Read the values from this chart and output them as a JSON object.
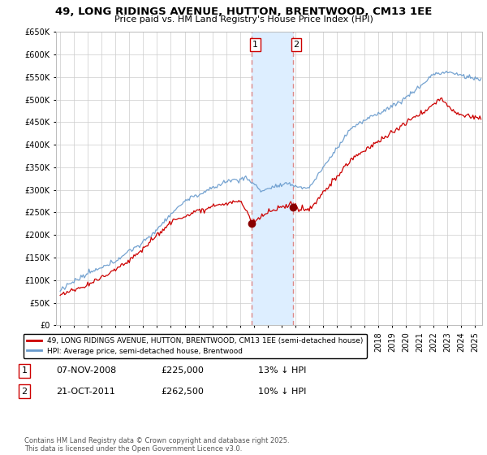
{
  "title": "49, LONG RIDINGS AVENUE, HUTTON, BRENTWOOD, CM13 1EE",
  "subtitle": "Price paid vs. HM Land Registry's House Price Index (HPI)",
  "ylim": [
    0,
    650000
  ],
  "yticks": [
    0,
    50000,
    100000,
    150000,
    200000,
    250000,
    300000,
    350000,
    400000,
    450000,
    500000,
    550000,
    600000,
    650000
  ],
  "ytick_labels": [
    "£0",
    "£50K",
    "£100K",
    "£150K",
    "£200K",
    "£250K",
    "£300K",
    "£350K",
    "£400K",
    "£450K",
    "£500K",
    "£550K",
    "£600K",
    "£650K"
  ],
  "xlim_start": 1994.7,
  "xlim_end": 2025.5,
  "purchase1_year": 2008.854,
  "purchase1_price": 225000,
  "purchase1_label": "1",
  "purchase1_date": "07-NOV-2008",
  "purchase1_hpi_diff": "13% ↓ HPI",
  "purchase2_year": 2011.804,
  "purchase2_price": 262500,
  "purchase2_label": "2",
  "purchase2_date": "21-OCT-2011",
  "purchase2_hpi_diff": "10% ↓ HPI",
  "line1_color": "#cc0000",
  "line2_color": "#6699cc",
  "shade_color": "#ddeeff",
  "dashed_color": "#dd8888",
  "grid_color": "#cccccc",
  "background_color": "#ffffff",
  "legend_label1": "49, LONG RIDINGS AVENUE, HUTTON, BRENTWOOD, CM13 1EE (semi-detached house)",
  "legend_label2": "HPI: Average price, semi-detached house, Brentwood",
  "footnote": "Contains HM Land Registry data © Crown copyright and database right 2025.\nThis data is licensed under the Open Government Licence v3.0.",
  "random_seed": 12345
}
